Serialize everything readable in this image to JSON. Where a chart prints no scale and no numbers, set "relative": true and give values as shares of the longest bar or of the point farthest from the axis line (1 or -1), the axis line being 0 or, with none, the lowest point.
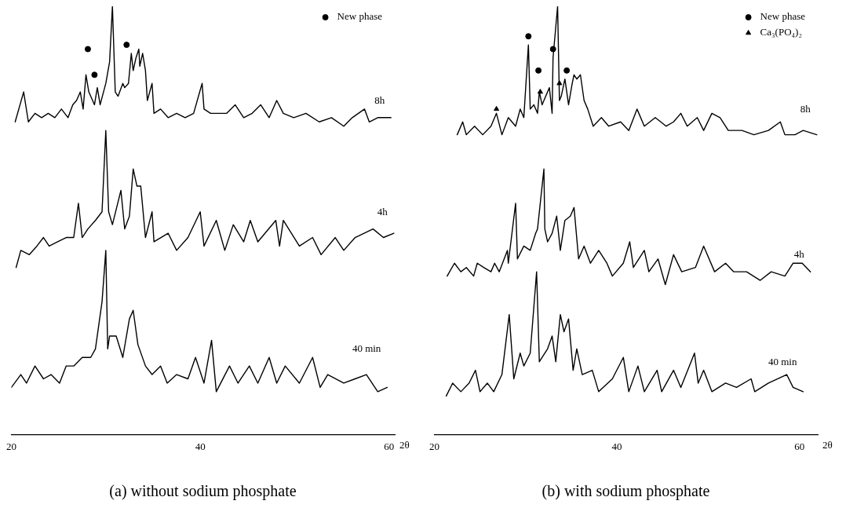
{
  "chart_data": [
    {
      "type": "line",
      "title": "(a) without sodium phosphate",
      "xlabel": "2θ",
      "relative": true,
      "xlim": [
        20,
        60.6
      ],
      "xticks": [
        20,
        40,
        60
      ],
      "grid": false,
      "legend": "top right",
      "marker": "none",
      "line_style": "solid",
      "series": [
        {
          "name": "8h",
          "color": "#000000",
          "x": [
            20.4,
            21.3,
            21.8,
            22.5,
            23.2,
            23.9,
            24.6,
            25.3,
            26.0,
            26.5,
            26.9,
            27.3,
            27.6,
            27.9,
            28.2,
            28.8,
            29.1,
            29.4,
            30.0,
            30.4,
            30.7,
            31.0,
            31.3,
            31.8,
            32.0,
            32.4,
            32.7,
            32.9,
            33.2,
            33.5,
            33.6,
            33.9,
            34.2,
            34.4,
            34.9,
            35.1,
            35.8,
            36.6,
            37.5,
            38.4,
            39.3,
            40.2,
            40.4,
            41.1,
            41.9,
            42.8,
            43.7,
            44.6,
            45.5,
            46.4,
            47.3,
            48.1,
            48.8,
            49.9,
            51.2,
            52.6,
            53.9,
            55.2,
            56.1,
            57.4,
            57.9,
            58.8,
            59.6,
            60.2
          ],
          "values": [
            0.73,
            0.8,
            0.73,
            0.75,
            0.74,
            0.75,
            0.74,
            0.76,
            0.74,
            0.77,
            0.78,
            0.8,
            0.76,
            0.84,
            0.8,
            0.77,
            0.81,
            0.77,
            0.82,
            0.87,
            1.0,
            0.8,
            0.79,
            0.82,
            0.81,
            0.82,
            0.89,
            0.85,
            0.88,
            0.9,
            0.86,
            0.89,
            0.85,
            0.78,
            0.82,
            0.75,
            0.76,
            0.74,
            0.75,
            0.74,
            0.75,
            0.82,
            0.76,
            0.75,
            0.75,
            0.75,
            0.77,
            0.74,
            0.75,
            0.77,
            0.74,
            0.78,
            0.75,
            0.74,
            0.75,
            0.73,
            0.74,
            0.72,
            0.74,
            0.76,
            0.73,
            0.74,
            0.74,
            0.74
          ]
        },
        {
          "name": "4h",
          "color": "#000000",
          "x": [
            20.5,
            21.0,
            21.9,
            22.7,
            23.4,
            24.0,
            24.9,
            25.8,
            26.6,
            27.1,
            27.5,
            28.1,
            28.9,
            29.6,
            30.0,
            30.3,
            30.7,
            31.6,
            32.0,
            32.5,
            32.9,
            33.3,
            33.7,
            34.2,
            34.9,
            35.1,
            36.6,
            37.5,
            38.7,
            40.0,
            40.4,
            41.7,
            42.6,
            43.5,
            44.6,
            45.3,
            46.1,
            48.0,
            48.4,
            48.8,
            50.5,
            51.9,
            52.8,
            54.3,
            55.2,
            56.4,
            58.3,
            59.4,
            60.5
          ],
          "values": [
            0.39,
            0.43,
            0.42,
            0.44,
            0.46,
            0.44,
            0.45,
            0.46,
            0.46,
            0.54,
            0.46,
            0.48,
            0.5,
            0.52,
            0.71,
            0.52,
            0.49,
            0.57,
            0.48,
            0.51,
            0.62,
            0.58,
            0.58,
            0.46,
            0.52,
            0.45,
            0.47,
            0.43,
            0.46,
            0.52,
            0.44,
            0.5,
            0.43,
            0.49,
            0.45,
            0.5,
            0.45,
            0.5,
            0.44,
            0.5,
            0.44,
            0.46,
            0.42,
            0.46,
            0.43,
            0.46,
            0.48,
            0.46,
            0.47
          ]
        },
        {
          "name": "40 min",
          "color": "#000000",
          "x": [
            20.0,
            21.0,
            21.6,
            22.5,
            23.4,
            24.2,
            25.1,
            25.8,
            26.6,
            27.5,
            28.4,
            28.9,
            29.6,
            30.0,
            30.2,
            30.4,
            31.1,
            31.8,
            32.5,
            32.9,
            33.4,
            34.2,
            34.9,
            35.8,
            36.5,
            37.5,
            38.7,
            39.5,
            40.4,
            41.2,
            41.7,
            43.1,
            44.0,
            45.2,
            46.1,
            47.3,
            48.1,
            49.0,
            50.5,
            51.9,
            52.7,
            53.5,
            55.2,
            56.4,
            57.6,
            58.8,
            59.8
          ],
          "values": [
            0.11,
            0.14,
            0.12,
            0.16,
            0.13,
            0.14,
            0.12,
            0.16,
            0.16,
            0.18,
            0.18,
            0.2,
            0.31,
            0.43,
            0.2,
            0.23,
            0.23,
            0.18,
            0.27,
            0.29,
            0.21,
            0.16,
            0.14,
            0.16,
            0.12,
            0.14,
            0.13,
            0.18,
            0.12,
            0.22,
            0.1,
            0.16,
            0.12,
            0.16,
            0.12,
            0.18,
            0.12,
            0.16,
            0.12,
            0.18,
            0.11,
            0.14,
            0.12,
            0.13,
            0.14,
            0.1,
            0.11
          ]
        },
        {
          "name": "New phase",
          "type": "scatter",
          "marker": "circle",
          "color": "#000000",
          "x": [
            28.1,
            28.8,
            32.2
          ],
          "values": [
            0.9,
            0.84,
            0.91
          ]
        }
      ]
    },
    {
      "type": "line",
      "title": "(b) with sodium phosphate",
      "xlabel": "2θ",
      "relative": true,
      "xlim": [
        20,
        62
      ],
      "xticks": [
        20,
        40,
        60
      ],
      "grid": false,
      "legend": "top right",
      "marker": "none",
      "line_style": "solid",
      "series": [
        {
          "name": "8h",
          "color": "#000000",
          "x": [
            22.5,
            23.1,
            23.5,
            24.4,
            25.3,
            26.2,
            26.8,
            27.4,
            28.1,
            28.9,
            29.4,
            29.8,
            30.3,
            30.5,
            30.9,
            31.3,
            31.5,
            31.8,
            32.2,
            32.6,
            32.9,
            33.0,
            33.5,
            33.7,
            33.9,
            34.3,
            34.7,
            35.1,
            35.3,
            35.6,
            36.0,
            36.4,
            36.8,
            37.4,
            38.3,
            39.1,
            40.4,
            41.3,
            42.2,
            43.0,
            44.2,
            45.4,
            46.2,
            47.0,
            47.7,
            48.8,
            49.5,
            50.4,
            51.3,
            52.2,
            53.7,
            55.0,
            56.6,
            57.9,
            58.4,
            59.5,
            60.4,
            61.9
          ],
          "values": [
            0.7,
            0.73,
            0.7,
            0.72,
            0.7,
            0.72,
            0.75,
            0.7,
            0.74,
            0.72,
            0.76,
            0.74,
            0.91,
            0.76,
            0.77,
            0.75,
            0.8,
            0.77,
            0.79,
            0.81,
            0.75,
            0.88,
            1.0,
            0.78,
            0.79,
            0.83,
            0.77,
            0.82,
            0.84,
            0.83,
            0.84,
            0.78,
            0.76,
            0.72,
            0.74,
            0.72,
            0.73,
            0.71,
            0.76,
            0.72,
            0.74,
            0.72,
            0.73,
            0.75,
            0.72,
            0.74,
            0.71,
            0.75,
            0.74,
            0.71,
            0.71,
            0.7,
            0.71,
            0.73,
            0.7,
            0.7,
            0.71,
            0.7
          ]
        },
        {
          "name": "4h",
          "color": "#000000",
          "x": [
            21.4,
            22.2,
            22.9,
            23.5,
            24.3,
            24.7,
            25.4,
            26.2,
            26.6,
            27.1,
            28.0,
            28.1,
            28.9,
            29.1,
            29.8,
            30.5,
            31.1,
            31.3,
            32.0,
            32.1,
            32.4,
            32.9,
            33.4,
            33.8,
            34.3,
            34.9,
            35.3,
            35.8,
            36.4,
            37.1,
            38.0,
            38.9,
            39.5,
            40.7,
            41.4,
            41.8,
            43.0,
            43.5,
            44.5,
            45.3,
            46.2,
            47.1,
            48.6,
            49.5,
            50.7,
            51.9,
            52.8,
            54.2,
            55.7,
            56.9,
            58.4,
            59.3,
            60.3,
            61.2
          ],
          "values": [
            0.37,
            0.4,
            0.38,
            0.39,
            0.37,
            0.4,
            0.39,
            0.38,
            0.4,
            0.38,
            0.43,
            0.4,
            0.54,
            0.41,
            0.44,
            0.43,
            0.47,
            0.48,
            0.62,
            0.48,
            0.45,
            0.47,
            0.51,
            0.43,
            0.5,
            0.51,
            0.53,
            0.41,
            0.44,
            0.4,
            0.43,
            0.4,
            0.37,
            0.4,
            0.45,
            0.39,
            0.43,
            0.38,
            0.41,
            0.35,
            0.42,
            0.38,
            0.39,
            0.44,
            0.38,
            0.4,
            0.38,
            0.38,
            0.36,
            0.38,
            0.37,
            0.4,
            0.4,
            0.38
          ]
        },
        {
          "name": "40 min",
          "color": "#000000",
          "x": [
            21.3,
            22.0,
            22.9,
            23.8,
            24.5,
            25.0,
            25.8,
            26.5,
            27.4,
            28.2,
            28.7,
            29.4,
            29.8,
            30.5,
            31.2,
            31.5,
            32.4,
            32.9,
            33.3,
            33.8,
            34.2,
            34.7,
            35.2,
            35.6,
            36.2,
            37.3,
            38.0,
            39.5,
            40.7,
            41.3,
            42.3,
            43.0,
            44.4,
            44.9,
            46.2,
            47.0,
            48.5,
            48.9,
            49.5,
            50.4,
            51.9,
            53.1,
            54.7,
            55.1,
            56.6,
            58.6,
            59.3,
            60.4
          ],
          "values": [
            0.09,
            0.12,
            0.1,
            0.12,
            0.15,
            0.1,
            0.12,
            0.1,
            0.14,
            0.28,
            0.13,
            0.19,
            0.16,
            0.19,
            0.38,
            0.17,
            0.2,
            0.23,
            0.17,
            0.28,
            0.24,
            0.27,
            0.15,
            0.2,
            0.14,
            0.15,
            0.1,
            0.13,
            0.18,
            0.1,
            0.16,
            0.1,
            0.15,
            0.1,
            0.15,
            0.11,
            0.19,
            0.12,
            0.15,
            0.1,
            0.12,
            0.11,
            0.13,
            0.1,
            0.12,
            0.14,
            0.11,
            0.1
          ]
        },
        {
          "name": "New phase",
          "type": "scatter",
          "marker": "circle",
          "color": "#000000",
          "x": [
            30.3,
            31.4,
            33.0,
            34.5
          ],
          "values": [
            0.93,
            0.85,
            0.9,
            0.85
          ]
        },
        {
          "name": "Ca₃(PO₄)₂",
          "type": "scatter",
          "marker": "triangle",
          "color": "#000000",
          "x": [
            26.8,
            31.6,
            33.7
          ],
          "values": [
            0.76,
            0.8,
            0.82
          ]
        }
      ]
    }
  ]
}
